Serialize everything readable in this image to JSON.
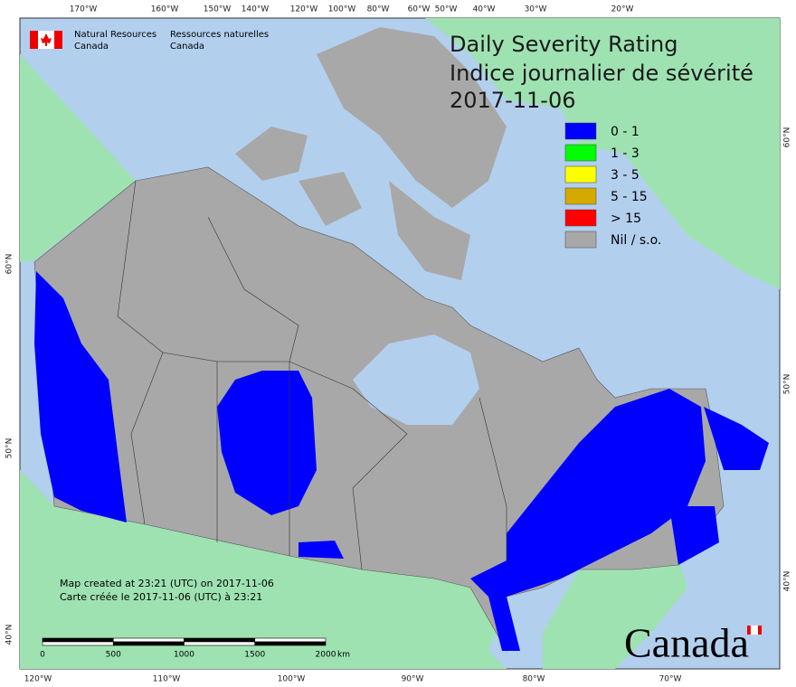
{
  "agency": {
    "en": [
      "Natural Resources",
      "Canada"
    ],
    "fr": [
      "Ressources naturelles",
      "Canada"
    ]
  },
  "title": [
    "Daily Severity Rating",
    "Indice journalier de sévérité",
    "2017-11-06"
  ],
  "legend": [
    {
      "label": "0 - 1",
      "color": "#0000ff"
    },
    {
      "label": "1 - 3",
      "color": "#00ff00"
    },
    {
      "label": "3 - 5",
      "color": "#ffff00"
    },
    {
      "label": "5 - 15",
      "color": "#d4aa00"
    },
    {
      "label": "> 15",
      "color": "#ff0000"
    },
    {
      "label": "Nil / s.o.",
      "color": "#a8a8a8"
    }
  ],
  "graticule": {
    "top": [
      "170°W",
      "160°W",
      "150°W",
      "140°W",
      "120°W",
      "100°W",
      "80°W",
      "60°W",
      "50°W",
      "40°W",
      "30°W",
      "20°W"
    ],
    "bottom": [
      "120°W",
      "110°W",
      "100°W",
      "90°W",
      "80°W",
      "70°W"
    ],
    "left": [
      "60°N",
      "50°N",
      "40°N"
    ],
    "right": [
      "60°N",
      "50°N",
      "40°N"
    ]
  },
  "notes": [
    "Map created at 23:21 (UTC) on 2017-11-06",
    "Carte créée le 2017-11-06 (UTC) à 23:21"
  ],
  "scale": {
    "labels": [
      "0",
      "500",
      "1000",
      "1500",
      "2000"
    ],
    "unit": "km"
  },
  "wordmark": "Canada"
}
